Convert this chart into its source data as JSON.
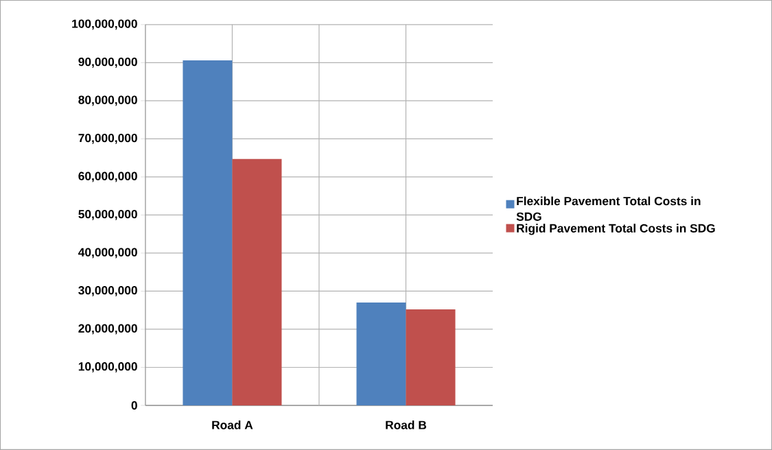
{
  "chart_data": {
    "type": "bar",
    "categories": [
      "Road A",
      "Road B"
    ],
    "series": [
      {
        "name": "Flexible Pavement Total Costs in SDG",
        "color": "#4f81bd",
        "values": [
          90600000,
          27000000
        ]
      },
      {
        "name": "Rigid Pavement Total Costs in SDG",
        "color": "#c0504d",
        "values": [
          64700000,
          25200000
        ]
      }
    ],
    "ylim": [
      0,
      100000000
    ],
    "yticks": [
      {
        "value": 0,
        "label": "0"
      },
      {
        "value": 10000000,
        "label": "10,000,000"
      },
      {
        "value": 20000000,
        "label": "20,000,000"
      },
      {
        "value": 30000000,
        "label": "30,000,000"
      },
      {
        "value": 40000000,
        "label": "40,000,000"
      },
      {
        "value": 50000000,
        "label": "50,000,000"
      },
      {
        "value": 60000000,
        "label": "60,000,000"
      },
      {
        "value": 70000000,
        "label": "70,000,000"
      },
      {
        "value": 80000000,
        "label": "80,000,000"
      },
      {
        "value": 90000000,
        "label": "90,000,000"
      },
      {
        "value": 100000000,
        "label": "100,000,000"
      }
    ],
    "grid": true,
    "legend": "right"
  }
}
